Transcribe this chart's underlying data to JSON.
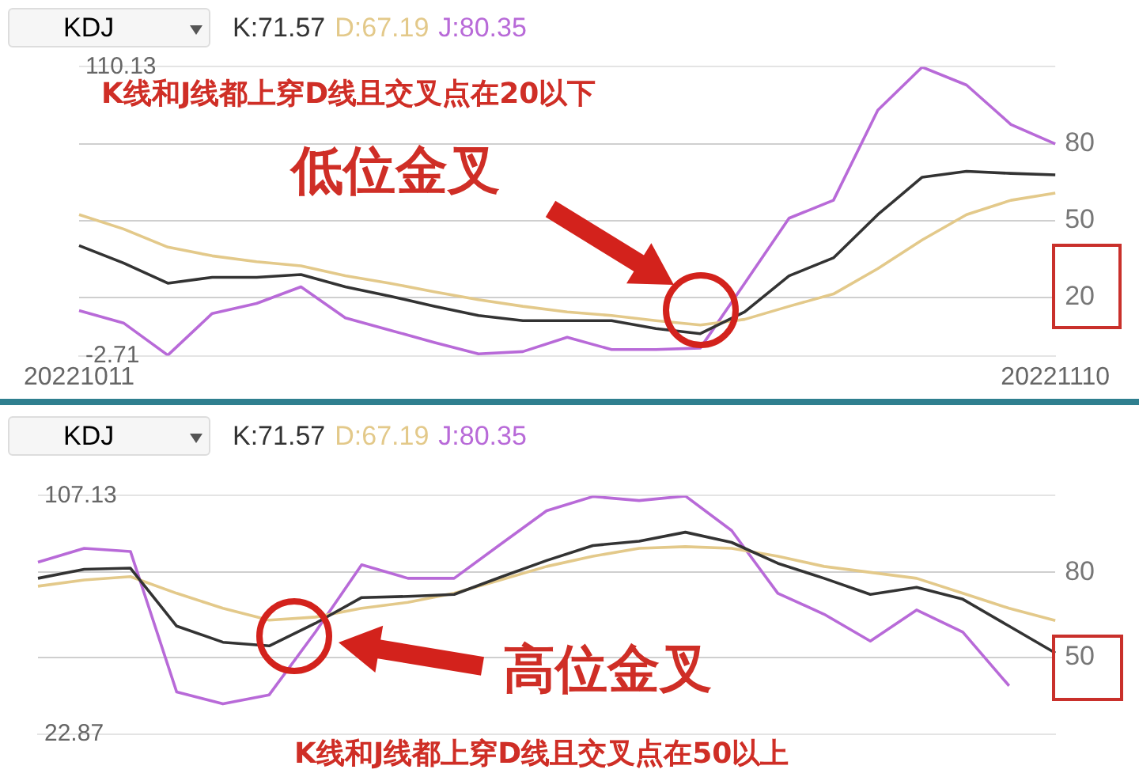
{
  "chart_data": [
    {
      "type": "line",
      "title": "KDJ",
      "legend": "top left",
      "grid": "y",
      "marker": "none",
      "categories": [
        "20221011",
        null,
        null,
        null,
        null,
        null,
        null,
        null,
        null,
        null,
        null,
        null,
        null,
        null,
        null,
        null,
        null,
        null,
        null,
        null,
        null,
        null,
        "20221110"
      ],
      "ylim": [
        -2.71,
        110.13
      ],
      "yticks": [
        -2.71,
        110.13
      ],
      "y2lim": [
        -2.71,
        110.13
      ],
      "y2ticks": [
        20,
        50,
        80
      ],
      "series": [
        {
          "name": "K:71.57",
          "color": "#333333",
          "values": [
            40.3,
            33.5,
            25.6,
            27.9,
            27.9,
            29,
            24.2,
            20.6,
            16.6,
            13,
            11,
            11,
            11,
            7.9,
            5.9,
            14.4,
            28.5,
            35.5,
            52.4,
            67,
            69.3,
            68.5,
            67.9
          ]
        },
        {
          "name": "D:67.19",
          "color": "#e3c98a",
          "values": [
            52.4,
            46.8,
            39.7,
            36.3,
            34,
            32.4,
            28.5,
            25.6,
            22.3,
            19.2,
            16.6,
            14.4,
            13,
            11,
            9.3,
            11.5,
            16.6,
            21.4,
            31.3,
            42.5,
            52.4,
            58,
            60.8
          ]
        },
        {
          "name": "J:80.35",
          "color": "#b86ad8",
          "values": [
            14.9,
            10.1,
            -2.5,
            13.8,
            17.7,
            24.2,
            12.1,
            7.3,
            2.5,
            -2,
            -1.1,
            4.5,
            -0.3,
            -0.3,
            0.3,
            25.6,
            51,
            58,
            93.2,
            110,
            103,
            87.6,
            80
          ]
        }
      ],
      "annotations": [
        "K线和J线都上穿D线且交叉点在20以下",
        "低位金叉"
      ]
    },
    {
      "type": "line",
      "title": "KDJ",
      "legend": "top left",
      "grid": "y",
      "marker": "none",
      "categories": [
        null,
        null,
        null,
        null,
        null,
        null,
        null,
        null,
        null,
        null,
        null,
        null,
        null,
        null,
        null,
        null,
        null,
        null,
        null,
        null,
        null,
        null,
        null
      ],
      "ylim": [
        22.87,
        107.13
      ],
      "yticks": [
        22.87,
        107.13
      ],
      "y2lim": [
        22.87,
        107.13
      ],
      "y2ticks": [
        50,
        80
      ],
      "series": [
        {
          "name": "K:71.57",
          "color": "#333333",
          "values": [
            77.9,
            81.1,
            81.5,
            61,
            55.3,
            54,
            62,
            71.1,
            71.5,
            72.2,
            78.3,
            84.2,
            89.5,
            91,
            94.2,
            90.6,
            83.2,
            77.9,
            72.2,
            74.7,
            70.5,
            61,
            51.5
          ]
        },
        {
          "name": "D:67.19",
          "color": "#e3c98a",
          "values": [
            75.1,
            77.3,
            78.5,
            72.6,
            67.3,
            63.1,
            64.2,
            67.3,
            69.4,
            72.6,
            77.3,
            82.1,
            85.7,
            88.5,
            89.1,
            88.5,
            85.7,
            82.1,
            80,
            77.9,
            72.6,
            67.3,
            63
          ]
        },
        {
          "name": "J:80.35",
          "color": "#b86ad8",
          "values": [
            83.6,
            88.5,
            87.4,
            37.7,
            33.5,
            36.7,
            58.9,
            82.7,
            77.9,
            77.9,
            89.9,
            101.8,
            106.8,
            105.4,
            107,
            94.8,
            72.6,
            65.2,
            55.7,
            66.7,
            58.9,
            39.9,
            null
          ]
        }
      ],
      "annotations": [
        "高位金叉",
        "K线和J线都上穿D线且交叉点在50以上"
      ]
    }
  ]
}
